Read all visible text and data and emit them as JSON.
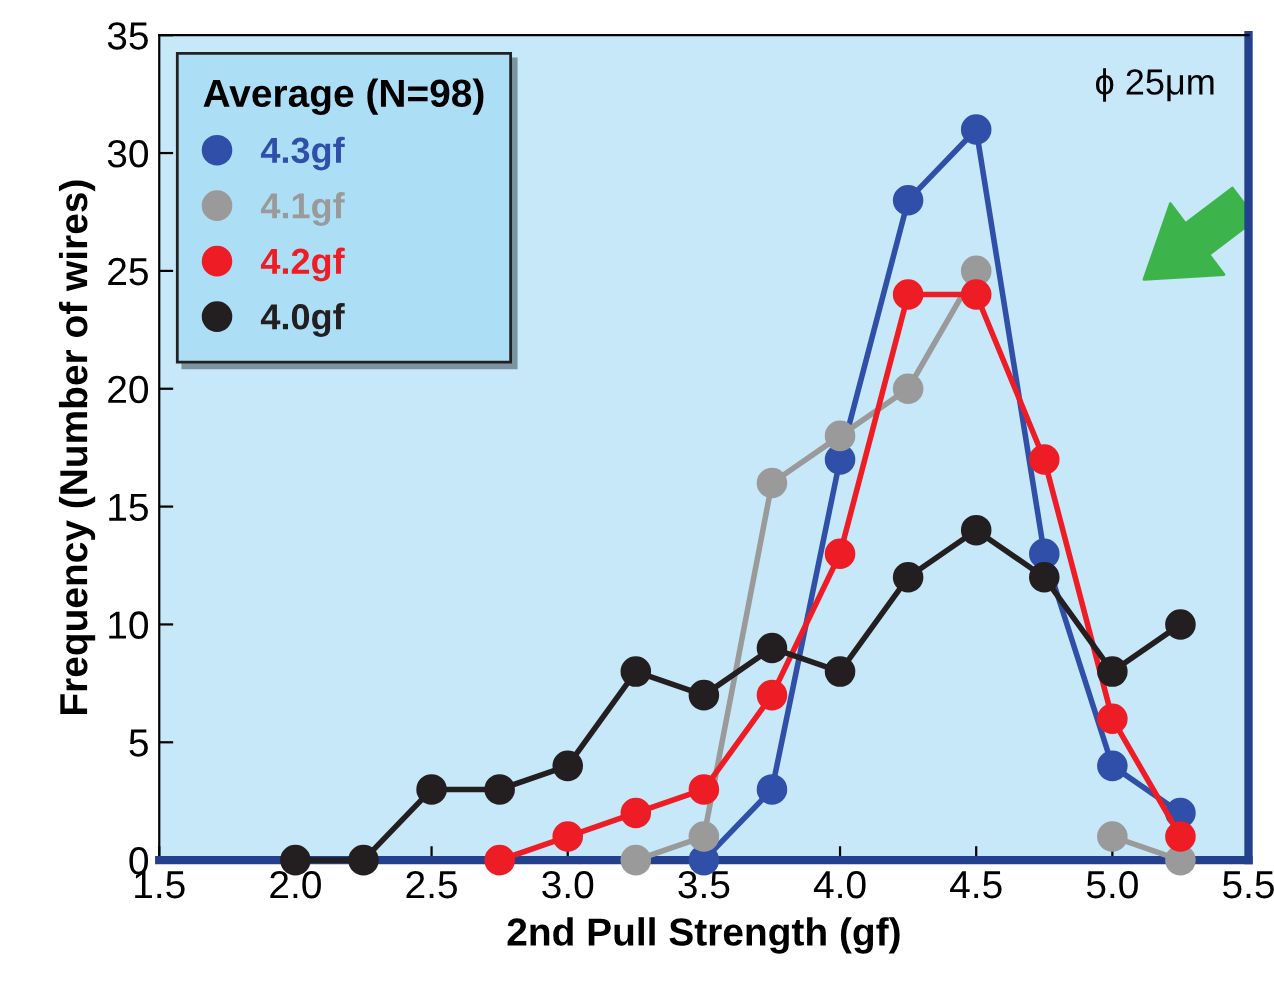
{
  "chart_data": {
    "type": "line",
    "xlabel": "2nd Pull Strength (gf)",
    "ylabel": "Frequency (Number of wires)",
    "legend_title": "Average (N=98)",
    "annotations": [
      "ϕ 25μm"
    ],
    "series": [
      {
        "name": "4.3gf",
        "color": "#2f4fa8",
        "x": [
          3.5,
          3.75,
          4.0,
          4.25,
          4.5,
          4.75,
          5.0,
          5.25
        ],
        "values": [
          0,
          3,
          17,
          28,
          31,
          13,
          4,
          2
        ]
      },
      {
        "name": "4.1gf",
        "color": "#9a9a9a",
        "x": [
          3.25,
          3.5,
          3.75,
          4.0,
          4.25,
          4.5,
          4.75,
          5.0,
          5.25
        ],
        "values": [
          0,
          1,
          16,
          18,
          20,
          25,
          null,
          1,
          0
        ]
      },
      {
        "name": "4.2gf",
        "color": "#ee1c25",
        "x": [
          2.75,
          3.0,
          3.25,
          3.5,
          3.75,
          4.0,
          4.25,
          4.5,
          4.75,
          5.0,
          5.25
        ],
        "values": [
          0,
          1,
          2,
          3,
          7,
          13,
          24,
          24,
          17,
          6,
          1
        ]
      },
      {
        "name": "4.0gf",
        "color": "#231f20",
        "x": [
          2.0,
          2.25,
          2.5,
          2.75,
          3.0,
          3.25,
          3.5,
          3.75,
          4.0,
          4.25,
          4.5,
          4.75,
          5.0,
          5.25
        ],
        "values": [
          0,
          0,
          3,
          3,
          4,
          8,
          7,
          9,
          8,
          12,
          14,
          12,
          8,
          10
        ]
      }
    ],
    "xlim": [
      1.5,
      5.5
    ],
    "xticks": [
      1.5,
      {
        "value": 2,
        "label": "2.0"
      },
      2.5,
      {
        "value": 3,
        "label": "3.0"
      },
      3.5,
      {
        "value": 4,
        "label": "4.0"
      },
      4.5,
      {
        "value": 5,
        "label": "5.0"
      },
      5.5
    ],
    "ylim": [
      0,
      35
    ],
    "yticks": [
      0,
      5,
      10,
      15,
      20,
      25,
      30,
      35
    ],
    "grid": false,
    "legend": "top left",
    "marker": "circle",
    "line_style": "solid"
  }
}
